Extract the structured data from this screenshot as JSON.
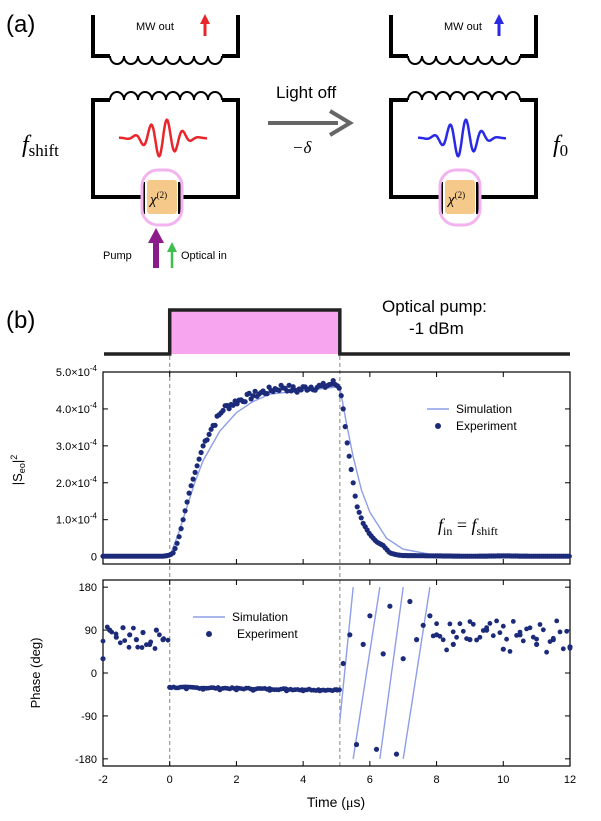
{
  "panel_a": {
    "label": "(a)",
    "left_circuit": {
      "mw_out_label": "MW out",
      "freq_main": "f",
      "freq_sub": "shift",
      "chi_main": "χ",
      "chi_sup": "(2)",
      "arrow_color": "#e8262b",
      "wave_color": "#e8262b"
    },
    "right_circuit": {
      "mw_out_label": "MW out",
      "freq_main": "f",
      "freq_sub": "0",
      "chi_main": "χ",
      "chi_sup": "(2)",
      "arrow_color": "#2a2ae6",
      "wave_color": "#2a2ae6"
    },
    "transition": {
      "label": "Light off",
      "delta_label": "−δ"
    },
    "pump_label": "Pump",
    "optical_in_label": "Optical in",
    "pump_color": "#8b1a8b",
    "optical_color": "#3fbf4f",
    "crystal_color": "#f5c98a",
    "cavity_color": "#f3b3ee"
  },
  "panel_b": {
    "label": "(b)",
    "pump_title_line1": "Optical pump:",
    "pump_title_line2": "-1 dBm",
    "pulse_color": "#f7a5ef",
    "top_plot": {
      "legend_sim": "Simulation",
      "legend_exp": "Experiment",
      "ylabel_main": "|S",
      "ylabel_sub": "eo",
      "ylabel_tail": "|",
      "ylabel_sup": "2",
      "yticks": [
        {
          "m": "0",
          "e": ""
        },
        {
          "m": "1.0×10",
          "e": "-4"
        },
        {
          "m": "2.0×10",
          "e": "-4"
        },
        {
          "m": "3.0×10",
          "e": "-4"
        },
        {
          "m": "4.0×10",
          "e": "-4"
        },
        {
          "m": "5.0×10",
          "e": "-4"
        }
      ],
      "annotation_f": "f",
      "annotation_sub1": "in",
      "annotation_eq": " = ",
      "annotation_f2": "f",
      "annotation_sub2": "shift"
    },
    "bottom_plot": {
      "legend_sim": "Simulation",
      "legend_exp": "Experiment",
      "ylabel": "Phase (deg)",
      "yticks": [
        "-180",
        "-90",
        "0",
        "90",
        "180"
      ],
      "xticks": [
        "-2",
        "0",
        "2",
        "4",
        "6",
        "8",
        "10",
        "12"
      ],
      "xlabel_main": "Time (",
      "xlabel_mu": "μ",
      "xlabel_tail": "s)"
    }
  },
  "chart_data": [
    {
      "type": "scatter",
      "xlim": [
        -2,
        12
      ],
      "ylim": [
        -2e-05,
        0.0005
      ],
      "ylabel": "|Seo|2",
      "legend": "top-right",
      "pulse_interval": [
        0,
        5.1
      ],
      "series": [
        {
          "name": "Experiment",
          "marker": "dot",
          "x": [
            -2,
            -1,
            -0.2,
            0,
            0.1,
            0.2,
            0.3,
            0.4,
            0.5,
            0.6,
            0.8,
            1.0,
            1.2,
            1.4,
            1.6,
            1.8,
            2.0,
            2.3,
            2.6,
            3.0,
            3.4,
            3.8,
            4.2,
            4.6,
            4.9,
            5.1,
            5.2,
            5.3,
            5.4,
            5.5,
            5.6,
            5.8,
            6.0,
            6.2,
            6.4,
            6.6,
            6.8,
            7.0,
            8,
            9,
            10,
            11,
            12
          ],
          "y": [
            1e-06,
            1e-06,
            1e-06,
            4e-06,
            1e-05,
            3e-05,
            6e-05,
            0.0001,
            0.00014,
            0.00018,
            0.00024,
            0.0003,
            0.00034,
            0.00037,
            0.0004,
            0.00041,
            0.00042,
            0.00043,
            0.00044,
            0.00045,
            0.00046,
            0.00045,
            0.00046,
            0.00046,
            0.00047,
            0.00046,
            0.0004,
            0.00032,
            0.00026,
            0.0002,
            0.00014,
            9e-05,
            6e-05,
            4e-05,
            3e-05,
            1e-05,
            5e-06,
            3e-06,
            2e-06,
            1e-06,
            2e-06,
            1e-06,
            1e-06
          ]
        },
        {
          "name": "Simulation",
          "marker": "line",
          "x": [
            -2,
            0,
            0.25,
            0.5,
            0.75,
            1.0,
            1.5,
            2.0,
            2.5,
            3.0,
            4.0,
            5.1,
            5.3,
            5.5,
            5.75,
            6.0,
            6.5,
            7.0,
            8,
            12
          ],
          "y": [
            0,
            0,
            6e-05,
            0.00013,
            0.0002,
            0.00026,
            0.00034,
            0.00039,
            0.00042,
            0.00044,
            0.00045,
            0.00046,
            0.00036,
            0.00027,
            0.00018,
            0.00012,
            5e-05,
            2e-05,
            3e-06,
            0
          ]
        }
      ]
    },
    {
      "type": "scatter",
      "xlim": [
        -2,
        12
      ],
      "ylim": [
        -195,
        195
      ],
      "ylabel": "Phase (deg)",
      "xlabel": "Time (μs)",
      "legend": "top-left",
      "series": [
        {
          "name": "Experiment",
          "marker": "dot",
          "x": [
            -2,
            -1.8,
            -1.6,
            -1.4,
            -1.2,
            -1.0,
            -0.8,
            -0.6,
            -0.4,
            -0.2,
            0,
            0.5,
            1,
            1.5,
            2,
            2.5,
            3,
            3.5,
            4,
            4.5,
            5,
            5.2,
            5.4,
            5.6,
            5.8,
            6.0,
            6.2,
            6.4,
            6.6,
            6.8,
            7.0,
            7.2,
            7.4,
            7.6,
            7.8,
            8.0,
            8.5,
            9,
            9.5,
            10,
            10.5,
            11,
            11.5,
            12
          ],
          "y": [
            30,
            90,
            75,
            95,
            80,
            70,
            85,
            60,
            90,
            70,
            -30,
            -33,
            -34,
            -35,
            -35,
            -36,
            -36,
            -37,
            -37,
            -37,
            -35,
            20,
            80,
            -150,
            60,
            120,
            -160,
            40,
            140,
            -170,
            30,
            150,
            70,
            100,
            120,
            80,
            60,
            70,
            90,
            50,
            80,
            60,
            70,
            55
          ]
        },
        {
          "name": "Simulation",
          "marker": "line",
          "segments": [
            {
              "x": [
                -2,
                -0.02
              ],
              "y": [
                0,
                0
              ]
            },
            {
              "x": [
                0,
                5.1
              ],
              "y": [
                -30,
                -36
              ]
            },
            {
              "x": [
                5.1,
                5.5
              ],
              "y": [
                -100,
                180
              ]
            },
            {
              "x": [
                5.5,
                6.3
              ],
              "y": [
                -180,
                180
              ]
            },
            {
              "x": [
                6.3,
                7.0
              ],
              "y": [
                -180,
                180
              ]
            },
            {
              "x": [
                7.0,
                7.8
              ],
              "y": [
                -180,
                180
              ]
            }
          ]
        }
      ]
    }
  ]
}
